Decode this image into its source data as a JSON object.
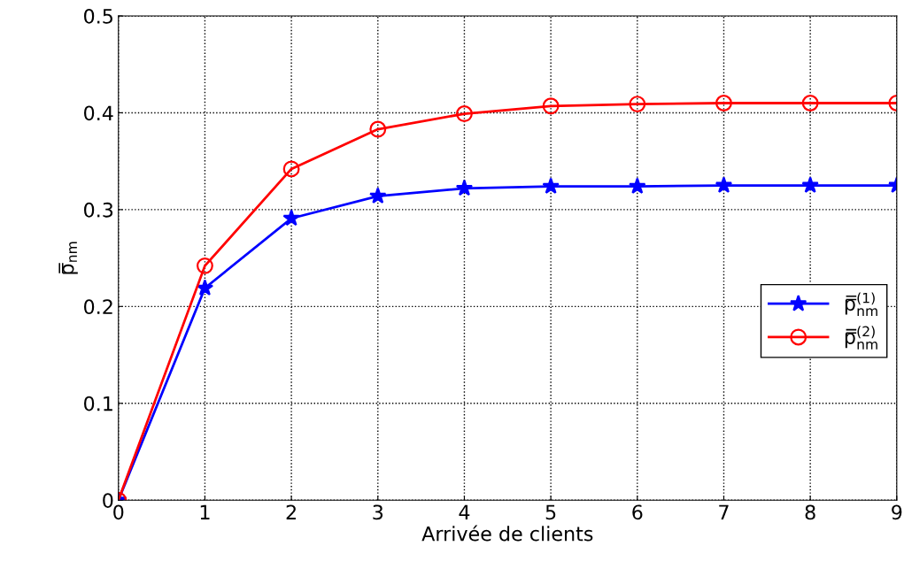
{
  "chart_data": {
    "type": "line",
    "xlabel": "Arrivée de clients",
    "ylabel": "p̿$_{nm}$",
    "x": [
      0,
      1,
      2,
      3,
      4,
      5,
      6,
      7,
      8,
      9
    ],
    "series": [
      {
        "name": "p̿$^{(1)}$$_{nm}$",
        "color": "#0000ff",
        "marker": "star",
        "values": [
          0,
          0.219,
          0.291,
          0.314,
          0.322,
          0.324,
          0.324,
          0.325,
          0.325,
          0.325
        ]
      },
      {
        "name": "p̿$^{(2)}$$_{nm}$",
        "color": "#ff0000",
        "marker": "circle",
        "values": [
          0,
          0.242,
          0.342,
          0.383,
          0.399,
          0.407,
          0.409,
          0.41,
          0.41,
          0.41
        ]
      }
    ],
    "xlim": [
      0,
      9
    ],
    "xticks": [
      0,
      1,
      2,
      3,
      4,
      5,
      6,
      7,
      8,
      9
    ],
    "ylim": [
      0,
      0.5
    ],
    "yticks": [
      0,
      0.1,
      0.2,
      0.3,
      0.4,
      0.5
    ],
    "grid": true,
    "legend": "right",
    "line_style": "solid"
  }
}
